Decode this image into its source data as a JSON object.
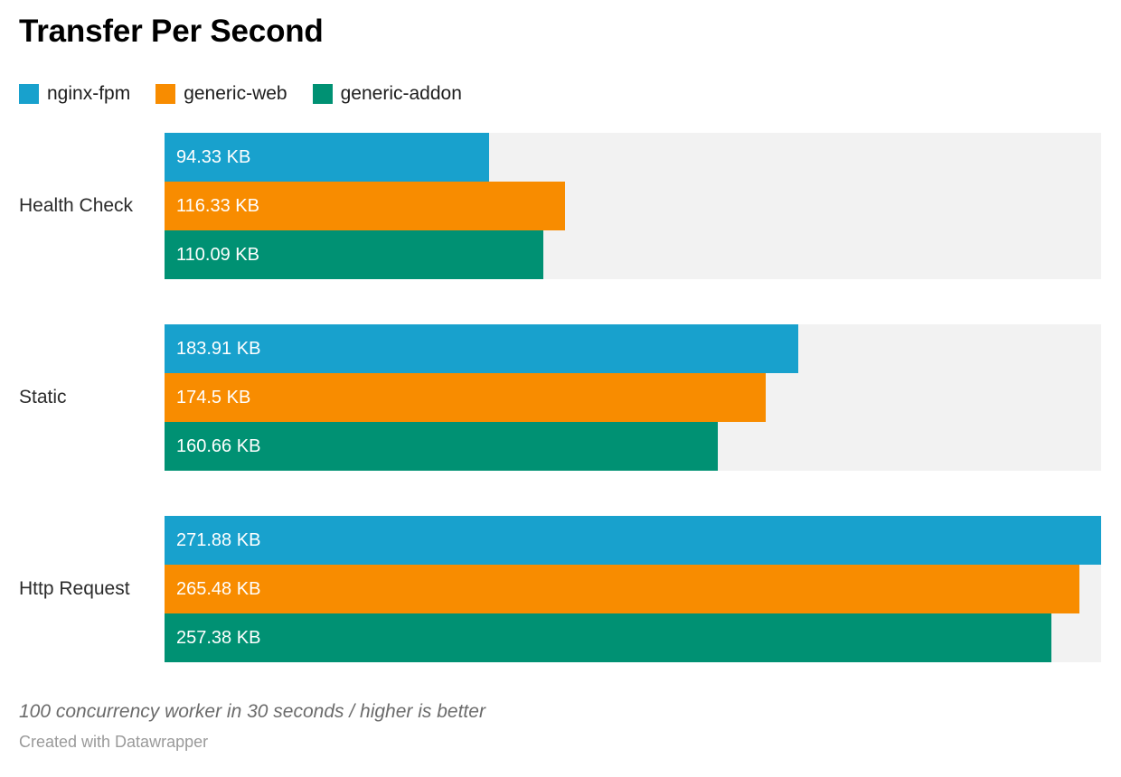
{
  "chart_data": {
    "type": "bar",
    "orientation": "horizontal",
    "title": "Transfer Per Second",
    "unit": "KB",
    "categories": [
      "Health Check",
      "Static",
      "Http Request"
    ],
    "series": [
      {
        "name": "nginx-fpm",
        "color": "#18a1cd",
        "values": [
          94.33,
          183.91,
          271.88
        ],
        "labels": [
          "94.33 KB",
          "183.91 KB",
          "271.88 KB"
        ]
      },
      {
        "name": "generic-web",
        "color": "#f88c00",
        "values": [
          116.33,
          174.5,
          265.48
        ],
        "labels": [
          "116.33 KB",
          "174.5 KB",
          "265.48 KB"
        ]
      },
      {
        "name": "generic-addon",
        "color": "#009173",
        "values": [
          110.09,
          160.66,
          257.38
        ],
        "labels": [
          "110.09 KB",
          "160.66 KB",
          "257.38 KB"
        ]
      }
    ],
    "xlim": [
      0,
      271.88
    ],
    "track_color": "#f2f2f2",
    "legend_position": "top",
    "grid": false,
    "value_labels_inside_bars": true
  },
  "footer": {
    "notes": "100 concurrency worker in 30 seconds / higher is better",
    "attribution": "Created with Datawrapper"
  }
}
